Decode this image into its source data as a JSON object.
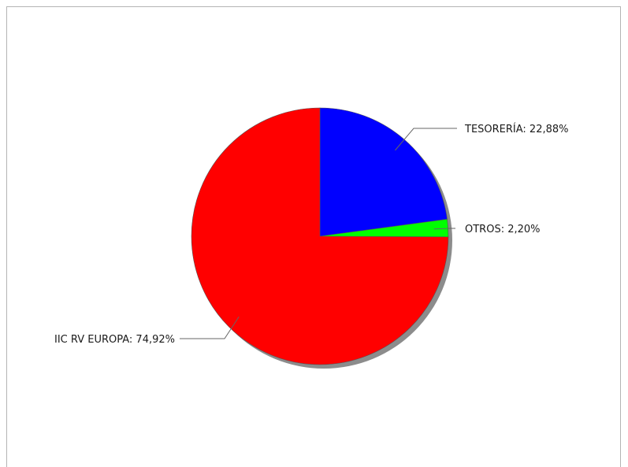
{
  "chart_data": {
    "type": "pie",
    "title": "",
    "slices": [
      {
        "label": "TESORERÍA: 22,88%",
        "value": 22.88,
        "color": "#0000ff",
        "label_side": "right"
      },
      {
        "label": "OTROS: 2,20%",
        "value": 2.2,
        "color": "#00ff00",
        "label_side": "right"
      },
      {
        "label": "IIC RV EUROPA: 74,92%",
        "value": 74.92,
        "color": "#ff0000",
        "label_side": "left"
      }
    ],
    "start_angle": "12 o'clock",
    "direction": "clockwise",
    "shadow": true,
    "legend": "none"
  }
}
